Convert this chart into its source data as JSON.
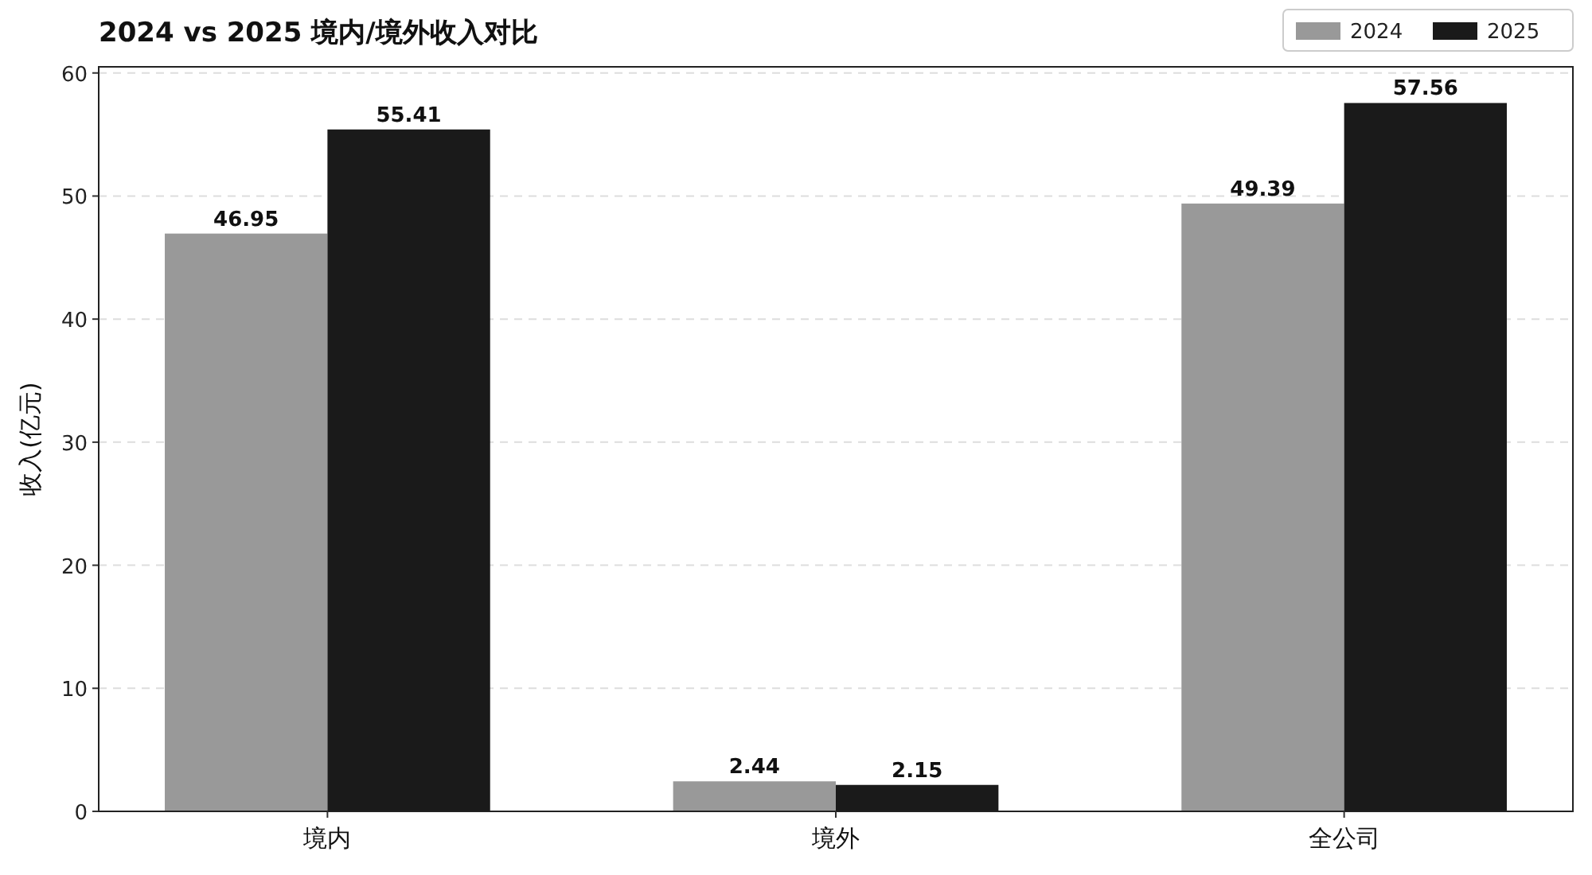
{
  "chart_data": {
    "type": "bar",
    "title": "2024 vs 2025 境内/境外收入对比",
    "ylabel": "收入(亿元)",
    "categories": [
      "境内",
      "境外",
      "全公司"
    ],
    "series": [
      {
        "name": "2024",
        "color": "#999999",
        "values": [
          46.95,
          2.44,
          49.39
        ]
      },
      {
        "name": "2025",
        "color": "#1a1a1a",
        "values": [
          55.41,
          2.15,
          57.56
        ]
      }
    ],
    "ylim": [
      0,
      60.5
    ],
    "yticks": [
      0,
      10,
      20,
      30,
      40,
      50,
      60
    ],
    "grid": "y",
    "legend": "top right",
    "data_labels": true
  }
}
